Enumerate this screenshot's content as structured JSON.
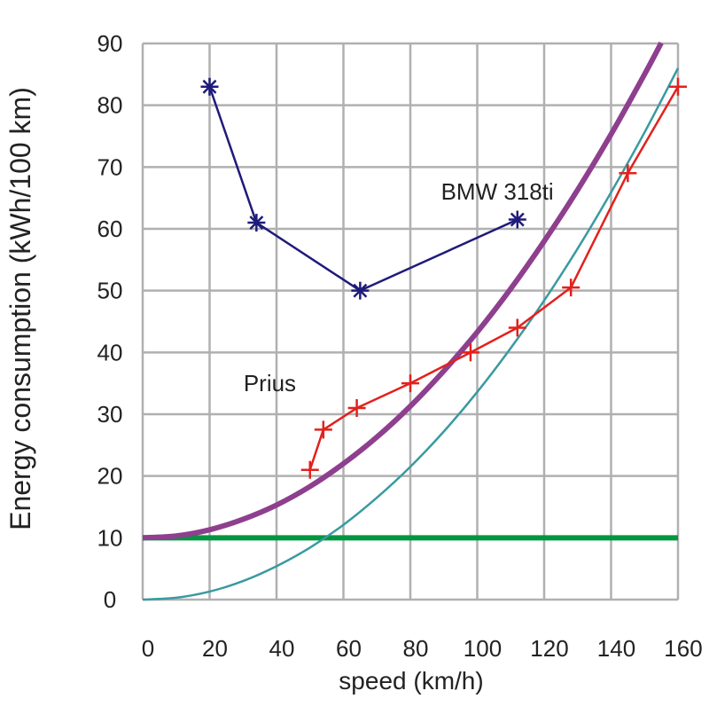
{
  "chart_data": {
    "type": "line",
    "xlabel": "speed (km/h)",
    "ylabel": "Energy consumption (kWh/100 km)",
    "xlim": [
      0,
      160
    ],
    "ylim": [
      0,
      90
    ],
    "xticks": [
      0,
      20,
      40,
      60,
      80,
      100,
      120,
      140,
      160
    ],
    "yticks": [
      0,
      10,
      20,
      30,
      40,
      50,
      60,
      70,
      80,
      90
    ],
    "grid": true,
    "annotations": [
      {
        "text": "BMW 318ti",
        "x": 106,
        "y": 66
      },
      {
        "text": "Prius",
        "x": 38,
        "y": 35
      }
    ],
    "series": [
      {
        "color": "#1f1b7a",
        "marker": "asterisk",
        "x": [
          20,
          34,
          65,
          112
        ],
        "y": [
          83,
          61,
          50,
          61.5
        ]
      },
      {
        "color": "#e3211c",
        "marker": "plus",
        "x": [
          50,
          54,
          64,
          80,
          98,
          112,
          128,
          145,
          160
        ],
        "y": [
          21,
          27.5,
          31,
          35,
          40,
          44,
          50.5,
          69,
          83
        ]
      },
      {
        "color": "#8e3f8e",
        "marker": "none",
        "x": [
          0,
          10,
          20,
          30,
          40,
          50,
          60,
          70,
          80,
          90,
          100,
          110,
          120,
          130,
          140,
          150,
          155
        ],
        "y": [
          10,
          10.3,
          11.3,
          13,
          15.3,
          18.3,
          22,
          26.3,
          31.3,
          37,
          43.3,
          50.3,
          58,
          66.3,
          75.3,
          85,
          90.1
        ]
      },
      {
        "color": "#3a9aa0",
        "marker": "none",
        "x": [
          0,
          10,
          20,
          30,
          40,
          50,
          60,
          70,
          80,
          90,
          100,
          110,
          120,
          130,
          140,
          150,
          160
        ],
        "y": [
          0,
          0.3,
          1.3,
          3,
          5.4,
          8.4,
          12.1,
          16.5,
          21.5,
          27.2,
          33.6,
          40.7,
          48.4,
          56.8,
          65.9,
          75.6,
          86
        ]
      },
      {
        "color": "#00963f",
        "marker": "none",
        "x": [
          0,
          160
        ],
        "y": [
          10,
          10
        ]
      }
    ]
  }
}
